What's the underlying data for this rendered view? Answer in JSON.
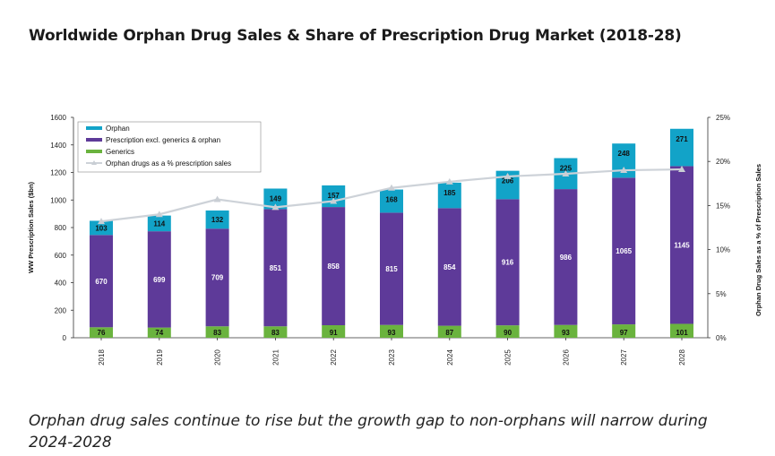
{
  "page": {
    "title": "Worldwide Orphan Drug Sales & Share of Prescription Drug Market (2018-28)",
    "caption": "Orphan drug sales continue to rise but the growth gap to non-orphans will narrow during 2024-2028"
  },
  "chart_data": {
    "type": "bar",
    "stacked": true,
    "categories": [
      "2018",
      "2019",
      "2020",
      "2021",
      "2022",
      "2023",
      "2024",
      "2025",
      "2026",
      "2027",
      "2028"
    ],
    "series": [
      {
        "name": "Generics",
        "color": "#6ab33e",
        "values": [
          76,
          74,
          83,
          83,
          91,
          93,
          87,
          90,
          93,
          97,
          101
        ]
      },
      {
        "name": "Prescription excl. generics & orphan",
        "color": "#5e3a99",
        "values": [
          670,
          699,
          709,
          851,
          858,
          815,
          854,
          916,
          986,
          1065,
          1145
        ]
      },
      {
        "name": "Orphan",
        "color": "#12a3c8",
        "values": [
          103,
          114,
          132,
          149,
          157,
          168,
          185,
          206,
          225,
          248,
          271
        ]
      }
    ],
    "line_series": {
      "name": "Orphan drugs  as a % prescription sales",
      "color": "#cdd2d8",
      "axis": "right",
      "values": [
        13.2,
        14.0,
        15.7,
        14.8,
        15.5,
        17.0,
        17.7,
        18.3,
        18.6,
        19.0,
        19.1
      ]
    },
    "ylabel": "WW Prescription Sales ($bn)",
    "ylabel_right": "Orphan Drug Sales as a % of Prescription Sales",
    "ylim": [
      0,
      1600
    ],
    "yticks": [
      "0",
      "200",
      "400",
      "600",
      "800",
      "1000",
      "1200",
      "1400",
      "1600"
    ],
    "ylim_right": [
      0,
      25
    ],
    "yticks_right": [
      "0%",
      "5%",
      "10%",
      "15%",
      "20%",
      "25%"
    ],
    "legend_placement": "top-left",
    "legend_order": [
      "Orphan",
      "Prescription excl. generics & orphan",
      "Generics",
      "Orphan drugs  as a % prescription sales"
    ],
    "grid": false
  }
}
